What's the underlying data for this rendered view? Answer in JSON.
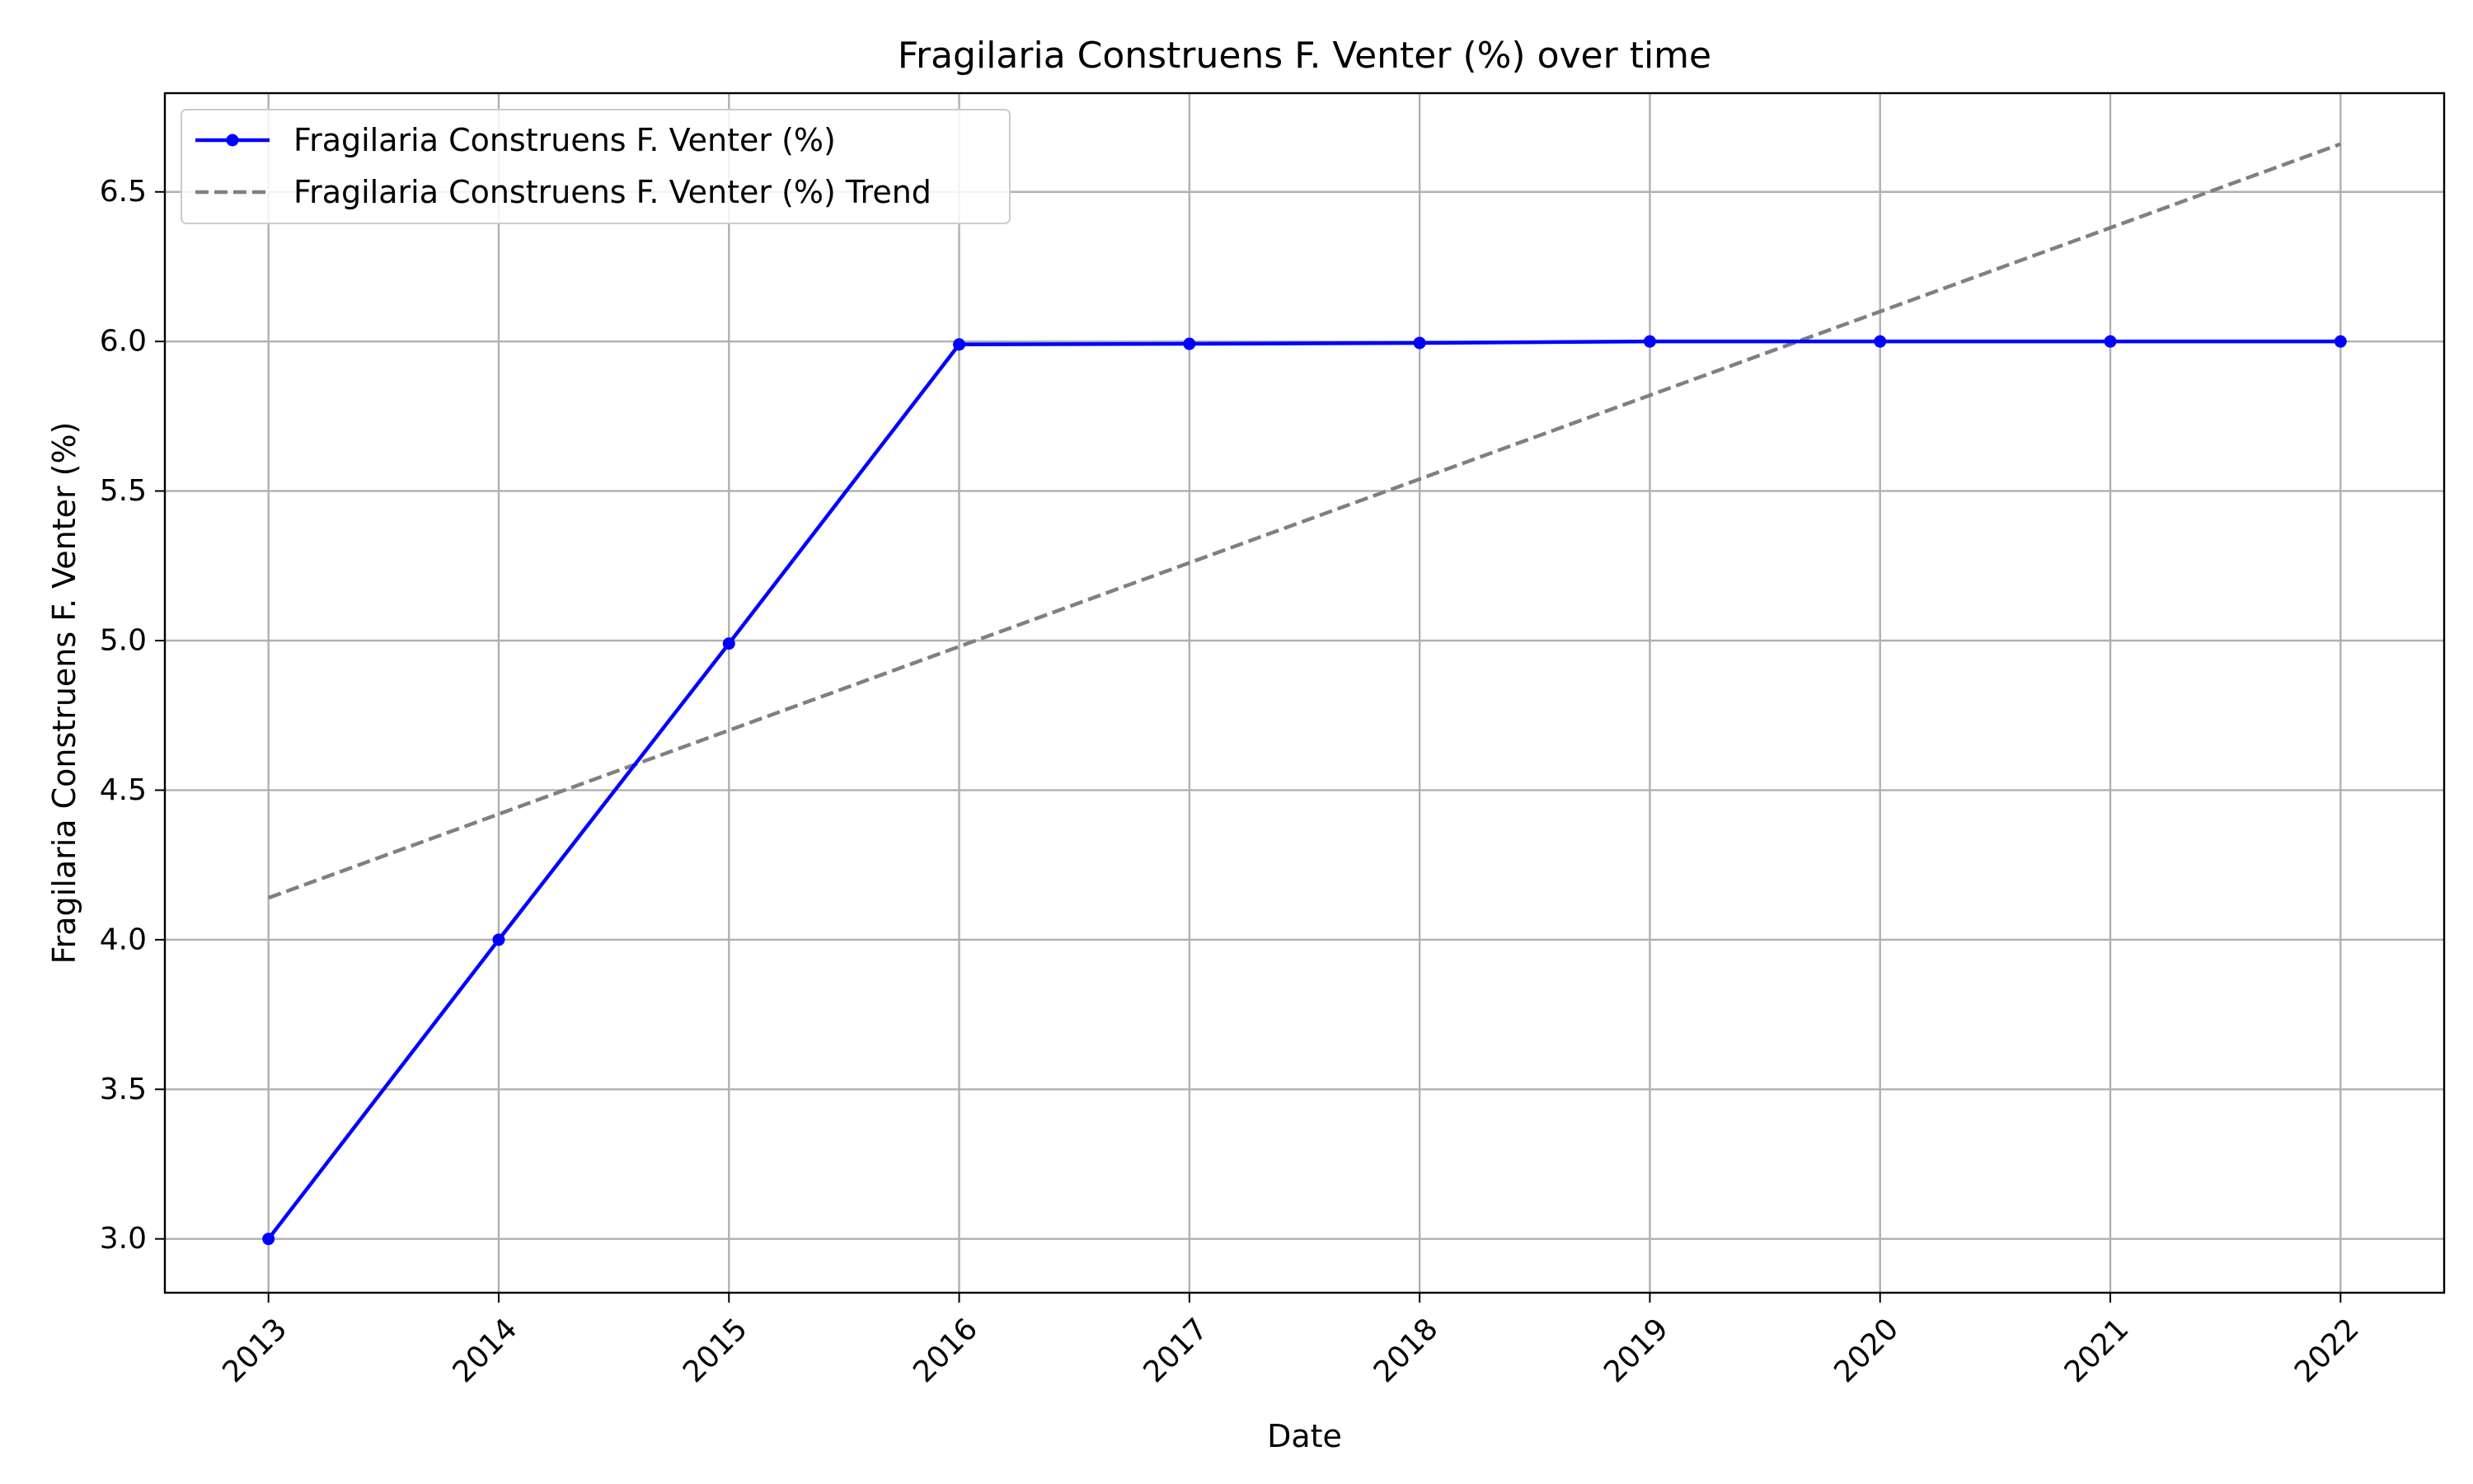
{
  "chart_data": {
    "type": "line",
    "title": "Fragilaria Construens F. Venter (%) over time",
    "xlabel": "Date",
    "ylabel": "Fragilaria Construens F. Venter (%)",
    "x": [
      "2013",
      "2014",
      "2015",
      "2016",
      "2017",
      "2018",
      "2019",
      "2020",
      "2021",
      "2022"
    ],
    "xlim": [
      "2012.55",
      "2022.45"
    ],
    "ylim": [
      2.82,
      6.83
    ],
    "yticks": [
      "3.0",
      "3.5",
      "4.0",
      "4.5",
      "5.0",
      "5.5",
      "6.0",
      "6.5"
    ],
    "grid": true,
    "legend_position": "upper-left",
    "series": [
      {
        "name": "Fragilaria Construens F. Venter (%)",
        "values": [
          3.0,
          4.0,
          4.99,
          5.99,
          5.992,
          5.995,
          6.0,
          6.0,
          6.0,
          6.0
        ],
        "color": "#0000ff",
        "style": "solid",
        "marker": "circle"
      },
      {
        "name": "Fragilaria Construens F. Venter (%) Trend",
        "values": [
          4.14,
          4.42,
          4.7,
          4.98,
          5.26,
          5.54,
          5.82,
          6.1,
          6.38,
          6.66
        ],
        "color": "#808080",
        "style": "dashed",
        "marker": "none"
      }
    ]
  }
}
